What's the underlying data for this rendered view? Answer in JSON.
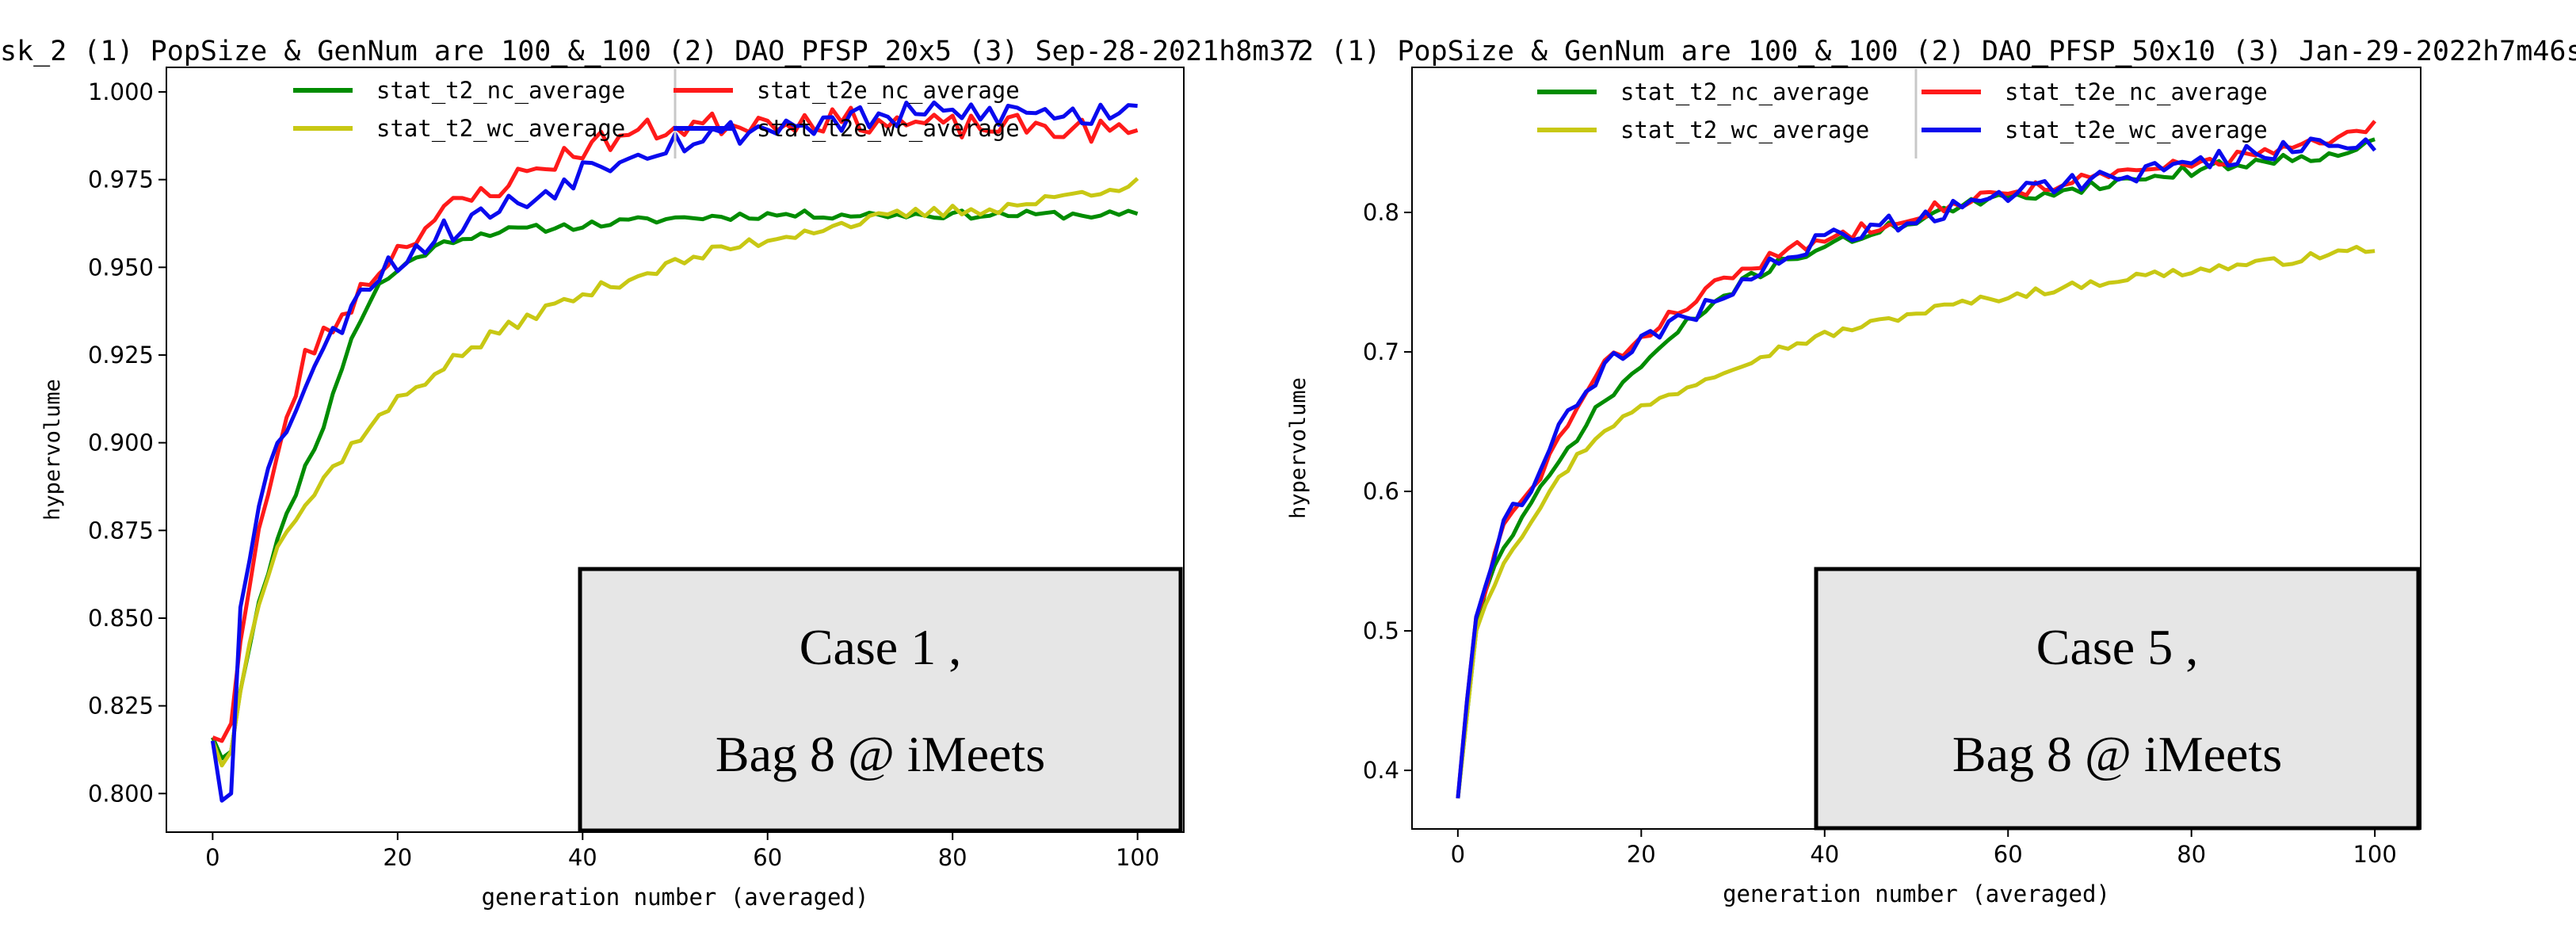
{
  "colors": {
    "nc": "#008c00",
    "t2e_nc": "#ff1a1a",
    "wc": "#c8c814",
    "t2e_wc": "#0a0aee",
    "box_fill": "#e6e6e6"
  },
  "chart_data": [
    {
      "type": "line",
      "title": "sk_2 (1) PopSize & GenNum are 100_&_100 (2) DAO_PFSP_20x5 (3) Sep-28-2021h8m37",
      "xlabel": "generation number (averaged)",
      "ylabel": "hypervolume",
      "xlim": [
        -5,
        105
      ],
      "ylim": [
        0.789,
        1.007
      ],
      "xticks": [
        0,
        20,
        40,
        60,
        80,
        100
      ],
      "xtick_labels": [
        "0",
        "20",
        "40",
        "60",
        "80",
        "100"
      ],
      "yticks": [
        0.8,
        0.825,
        0.85,
        0.875,
        0.9,
        0.925,
        0.95,
        0.975,
        1.0
      ],
      "ytick_labels": [
        "0.800",
        "0.825",
        "0.850",
        "0.875",
        "0.900",
        "0.925",
        "0.950",
        "0.975",
        "1.000"
      ],
      "legend": "top-center",
      "annotation": {
        "line1": "Case 1 ,",
        "line2": "Bag 8 @ iMeets"
      },
      "series": [
        {
          "name": "stat_t2_nc_average",
          "color_key": "nc",
          "anchors": [
            [
              0,
              0.816
            ],
            [
              1,
              0.81
            ],
            [
              2,
              0.812
            ],
            [
              3,
              0.83
            ],
            [
              5,
              0.855
            ],
            [
              7,
              0.872
            ],
            [
              10,
              0.893
            ],
            [
              12,
              0.905
            ],
            [
              15,
              0.93
            ],
            [
              18,
              0.945
            ],
            [
              22,
              0.953
            ],
            [
              26,
              0.958
            ],
            [
              30,
              0.96
            ],
            [
              35,
              0.961
            ],
            [
              40,
              0.962
            ],
            [
              50,
              0.964
            ],
            [
              60,
              0.965
            ],
            [
              100,
              0.965
            ]
          ],
          "noise": 0.0012,
          "seed": 11
        },
        {
          "name": "stat_t2e_nc_average",
          "color_key": "t2e_nc",
          "anchors": [
            [
              0,
              0.816
            ],
            [
              1,
              0.815
            ],
            [
              2,
              0.82
            ],
            [
              3,
              0.845
            ],
            [
              5,
              0.875
            ],
            [
              8,
              0.905
            ],
            [
              10,
              0.925
            ],
            [
              12,
              0.93
            ],
            [
              15,
              0.94
            ],
            [
              18,
              0.95
            ],
            [
              22,
              0.96
            ],
            [
              26,
              0.967
            ],
            [
              30,
              0.972
            ],
            [
              35,
              0.978
            ],
            [
              40,
              0.984
            ],
            [
              45,
              0.988
            ],
            [
              50,
              0.99
            ],
            [
              60,
              0.992
            ],
            [
              70,
              0.992
            ],
            [
              80,
              0.99
            ],
            [
              90,
              0.99
            ],
            [
              100,
              0.988
            ]
          ],
          "noise": 0.0035,
          "seed": 23
        },
        {
          "name": "stat_t2_wc_average",
          "color_key": "wc",
          "anchors": [
            [
              0,
              0.815
            ],
            [
              1,
              0.808
            ],
            [
              2,
              0.812
            ],
            [
              3,
              0.83
            ],
            [
              5,
              0.855
            ],
            [
              7,
              0.872
            ],
            [
              10,
              0.882
            ],
            [
              13,
              0.893
            ],
            [
              16,
              0.902
            ],
            [
              20,
              0.912
            ],
            [
              25,
              0.922
            ],
            [
              30,
              0.93
            ],
            [
              35,
              0.937
            ],
            [
              40,
              0.942
            ],
            [
              45,
              0.947
            ],
            [
              50,
              0.951
            ],
            [
              55,
              0.955
            ],
            [
              60,
              0.958
            ],
            [
              65,
              0.961
            ],
            [
              70,
              0.963
            ],
            [
              75,
              0.965
            ],
            [
              80,
              0.966
            ],
            [
              85,
              0.967
            ],
            [
              90,
              0.969
            ],
            [
              95,
              0.972
            ],
            [
              100,
              0.974
            ]
          ],
          "noise": 0.0018,
          "seed": 37
        },
        {
          "name": "stat_t2e_wc_average",
          "color_key": "t2e_wc",
          "anchors": [
            [
              0,
              0.815
            ],
            [
              1,
              0.798
            ],
            [
              2,
              0.8
            ],
            [
              3,
              0.855
            ],
            [
              5,
              0.885
            ],
            [
              8,
              0.905
            ],
            [
              10,
              0.918
            ],
            [
              13,
              0.93
            ],
            [
              16,
              0.945
            ],
            [
              20,
              0.952
            ],
            [
              25,
              0.96
            ],
            [
              30,
              0.966
            ],
            [
              35,
              0.97
            ],
            [
              40,
              0.978
            ],
            [
              45,
              0.983
            ],
            [
              50,
              0.986
            ],
            [
              60,
              0.99
            ],
            [
              70,
              0.992
            ],
            [
              80,
              0.994
            ],
            [
              90,
              0.994
            ],
            [
              95,
              0.993
            ],
            [
              100,
              0.998
            ]
          ],
          "noise": 0.004,
          "seed": 53
        }
      ]
    },
    {
      "type": "line",
      "title": "2 (1) PopSize & GenNum are 100_&_100 (2) DAO_PFSP_50x10 (3) Jan-29-2022h7m46s",
      "xlabel": "generation number (averaged)",
      "ylabel": "hypervolume",
      "xlim": [
        -5,
        105
      ],
      "ylim": [
        0.358,
        0.904
      ],
      "xticks": [
        0,
        20,
        40,
        60,
        80,
        100
      ],
      "xtick_labels": [
        "0",
        "20",
        "40",
        "60",
        "80",
        "100"
      ],
      "yticks": [
        0.4,
        0.5,
        0.6,
        0.7,
        0.8
      ],
      "ytick_labels": [
        "0.4",
        "0.5",
        "0.6",
        "0.7",
        "0.8"
      ],
      "legend": "top-center",
      "annotation": {
        "line1": "Case 5 ,",
        "line2": "Bag 8 @ iMeets"
      },
      "series": [
        {
          "name": "stat_t2_nc_average",
          "color_key": "nc",
          "anchors": [
            [
              0,
              0.38
            ],
            [
              1,
              0.44
            ],
            [
              2,
              0.5
            ],
            [
              3,
              0.53
            ],
            [
              5,
              0.56
            ],
            [
              8,
              0.59
            ],
            [
              10,
              0.61
            ],
            [
              13,
              0.64
            ],
            [
              16,
              0.665
            ],
            [
              20,
              0.69
            ],
            [
              25,
              0.72
            ],
            [
              30,
              0.745
            ],
            [
              35,
              0.765
            ],
            [
              40,
              0.775
            ],
            [
              45,
              0.785
            ],
            [
              50,
              0.795
            ],
            [
              55,
              0.805
            ],
            [
              60,
              0.81
            ],
            [
              65,
              0.815
            ],
            [
              70,
              0.82
            ],
            [
              75,
              0.825
            ],
            [
              80,
              0.83
            ],
            [
              85,
              0.835
            ],
            [
              90,
              0.838
            ],
            [
              95,
              0.842
            ],
            [
              100,
              0.85
            ]
          ],
          "noise": 0.004,
          "seed": 71
        },
        {
          "name": "stat_t2e_nc_average",
          "color_key": "t2e_nc",
          "anchors": [
            [
              0,
              0.38
            ],
            [
              1,
              0.45
            ],
            [
              2,
              0.51
            ],
            [
              3,
              0.53
            ],
            [
              5,
              0.575
            ],
            [
              8,
              0.6
            ],
            [
              10,
              0.625
            ],
            [
              13,
              0.66
            ],
            [
              16,
              0.69
            ],
            [
              20,
              0.71
            ],
            [
              25,
              0.735
            ],
            [
              30,
              0.755
            ],
            [
              35,
              0.77
            ],
            [
              40,
              0.78
            ],
            [
              45,
              0.79
            ],
            [
              50,
              0.8
            ],
            [
              55,
              0.808
            ],
            [
              60,
              0.815
            ],
            [
              65,
              0.82
            ],
            [
              70,
              0.825
            ],
            [
              75,
              0.83
            ],
            [
              80,
              0.835
            ],
            [
              85,
              0.84
            ],
            [
              90,
              0.845
            ],
            [
              95,
              0.85
            ],
            [
              100,
              0.862
            ]
          ],
          "noise": 0.005,
          "seed": 83
        },
        {
          "name": "stat_t2_wc_average",
          "color_key": "wc",
          "anchors": [
            [
              0,
              0.38
            ],
            [
              1,
              0.44
            ],
            [
              2,
              0.5
            ],
            [
              3,
              0.52
            ],
            [
              5,
              0.55
            ],
            [
              8,
              0.58
            ],
            [
              10,
              0.6
            ],
            [
              13,
              0.625
            ],
            [
              16,
              0.645
            ],
            [
              20,
              0.66
            ],
            [
              25,
              0.675
            ],
            [
              30,
              0.69
            ],
            [
              35,
              0.702
            ],
            [
              40,
              0.712
            ],
            [
              45,
              0.72
            ],
            [
              50,
              0.728
            ],
            [
              55,
              0.735
            ],
            [
              60,
              0.74
            ],
            [
              65,
              0.745
            ],
            [
              70,
              0.75
            ],
            [
              75,
              0.755
            ],
            [
              80,
              0.758
            ],
            [
              85,
              0.762
            ],
            [
              90,
              0.765
            ],
            [
              95,
              0.77
            ],
            [
              100,
              0.775
            ]
          ],
          "noise": 0.003,
          "seed": 97
        },
        {
          "name": "stat_t2e_wc_average",
          "color_key": "t2e_wc",
          "anchors": [
            [
              0,
              0.38
            ],
            [
              1,
              0.45
            ],
            [
              2,
              0.51
            ],
            [
              3,
              0.535
            ],
            [
              5,
              0.58
            ],
            [
              8,
              0.605
            ],
            [
              10,
              0.63
            ],
            [
              13,
              0.665
            ],
            [
              16,
              0.69
            ],
            [
              20,
              0.705
            ],
            [
              25,
              0.725
            ],
            [
              30,
              0.745
            ],
            [
              35,
              0.765
            ],
            [
              40,
              0.78
            ],
            [
              45,
              0.79
            ],
            [
              50,
              0.795
            ],
            [
              55,
              0.805
            ],
            [
              60,
              0.815
            ],
            [
              65,
              0.82
            ],
            [
              70,
              0.825
            ],
            [
              75,
              0.83
            ],
            [
              80,
              0.835
            ],
            [
              85,
              0.84
            ],
            [
              90,
              0.845
            ],
            [
              95,
              0.85
            ],
            [
              100,
              0.85
            ]
          ],
          "noise": 0.007,
          "seed": 109
        }
      ]
    }
  ]
}
